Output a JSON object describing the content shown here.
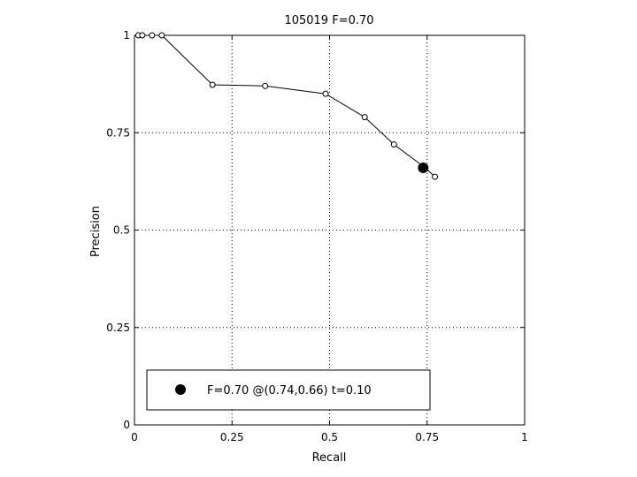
{
  "chart_data": {
    "type": "line",
    "title": "105019 F=0.70",
    "xlabel": "Recall",
    "ylabel": "Precision",
    "xlim": [
      0,
      1
    ],
    "ylim": [
      0,
      1
    ],
    "grid": true,
    "x_ticks": [
      0,
      0.25,
      0.5,
      0.75,
      1
    ],
    "y_ticks": [
      0,
      0.25,
      0.5,
      0.75,
      1
    ],
    "x_tick_labels": [
      "0",
      "0.25",
      "0.5",
      "0.75",
      "1"
    ],
    "y_tick_labels": [
      "0",
      "0.25",
      "0.5",
      "0.75",
      "1"
    ],
    "series": [
      {
        "x": [
          0.01,
          0.02,
          0.045,
          0.07,
          0.2,
          0.335,
          0.49,
          0.59,
          0.665,
          0.745,
          0.77
        ],
        "y": [
          1.0,
          1.0,
          1.0,
          1.0,
          0.873,
          0.87,
          0.85,
          0.79,
          0.72,
          0.66,
          0.637
        ]
      }
    ],
    "best_point": {
      "x": 0.74,
      "y": 0.66
    },
    "legend": {
      "label": "F=0.70 @(0.74,0.66) t=0.10",
      "placement": "bottom"
    }
  }
}
